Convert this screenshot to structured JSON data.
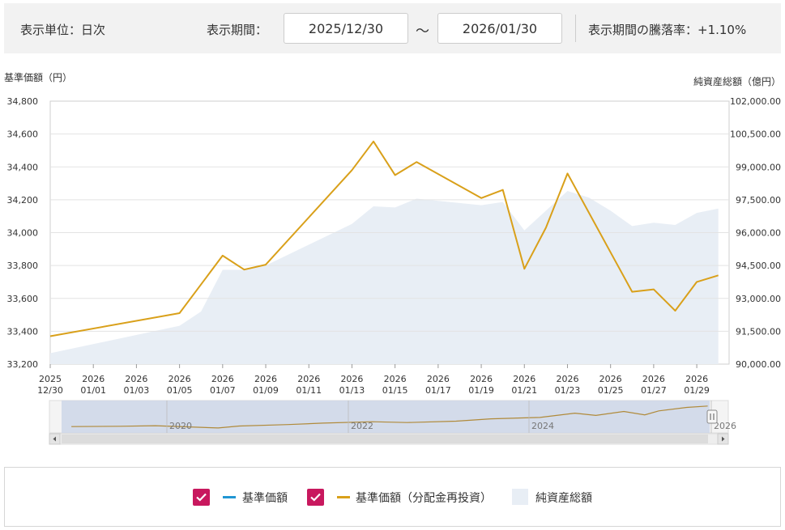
{
  "header": {
    "unit_label": "表示単位：日次",
    "period_label": "表示期間：",
    "start_date": "2025/12/30",
    "tilde": "～",
    "end_date": "2026/01/30",
    "change_label": "表示期間の騰落率：+1.10%"
  },
  "colors": {
    "nav_line": "#2196d3",
    "reinvest_line": "#d9a01a",
    "aum_area": "#e8eef5",
    "check": "#c8185e"
  },
  "chart_data": {
    "type": "line",
    "left_axis_label": "基準価額（円）",
    "right_axis_label": "純資産総額（億円）",
    "ylim_left": [
      33200,
      34800
    ],
    "ylim_right": [
      90000,
      102000
    ],
    "yticks_left": [
      "34,800",
      "34,600",
      "34,400",
      "34,200",
      "34,000",
      "33,800",
      "33,600",
      "33,400",
      "33,200"
    ],
    "yticks_right": [
      "102,000.00",
      "100,500.00",
      "99,000.00",
      "97,500.00",
      "96,000.00",
      "94,500.00",
      "93,000.00",
      "91,500.00",
      "90,000.00"
    ],
    "x_ticks": [
      {
        "date": "2025-12-30",
        "year": "2025",
        "md": "12/30"
      },
      {
        "date": "2026-01-01",
        "year": "2026",
        "md": "01/01"
      },
      {
        "date": "2026-01-03",
        "year": "2026",
        "md": "01/03"
      },
      {
        "date": "2026-01-05",
        "year": "2026",
        "md": "01/05"
      },
      {
        "date": "2026-01-07",
        "year": "2026",
        "md": "01/07"
      },
      {
        "date": "2026-01-09",
        "year": "2026",
        "md": "01/09"
      },
      {
        "date": "2026-01-11",
        "year": "2026",
        "md": "01/11"
      },
      {
        "date": "2026-01-13",
        "year": "2026",
        "md": "01/13"
      },
      {
        "date": "2026-01-15",
        "year": "2026",
        "md": "01/15"
      },
      {
        "date": "2026-01-17",
        "year": "2026",
        "md": "01/17"
      },
      {
        "date": "2026-01-19",
        "year": "2026",
        "md": "01/19"
      },
      {
        "date": "2026-01-21",
        "year": "2026",
        "md": "01/21"
      },
      {
        "date": "2026-01-23",
        "year": "2026",
        "md": "01/23"
      },
      {
        "date": "2026-01-25",
        "year": "2026",
        "md": "01/25"
      },
      {
        "date": "2026-01-27",
        "year": "2026",
        "md": "01/27"
      },
      {
        "date": "2026-01-29",
        "year": "2026",
        "md": "01/29"
      }
    ],
    "series": [
      {
        "name": "基準価額（分配金再投資）",
        "type": "line",
        "points": [
          [
            "2025-12-30",
            33370
          ],
          [
            "2026-01-05",
            33510
          ],
          [
            "2026-01-07",
            33860
          ],
          [
            "2026-01-08",
            33775
          ],
          [
            "2026-01-09",
            33805
          ],
          [
            "2026-01-13",
            34380
          ],
          [
            "2026-01-14",
            34555
          ],
          [
            "2026-01-15",
            34350
          ],
          [
            "2026-01-16",
            34430
          ],
          [
            "2026-01-19",
            34210
          ],
          [
            "2026-01-20",
            34260
          ],
          [
            "2026-01-21",
            33780
          ],
          [
            "2026-01-22",
            34030
          ],
          [
            "2026-01-23",
            34360
          ],
          [
            "2026-01-26",
            33640
          ],
          [
            "2026-01-27",
            33655
          ],
          [
            "2026-01-28",
            33525
          ],
          [
            "2026-01-29",
            33700
          ],
          [
            "2026-01-30",
            33740
          ]
        ]
      },
      {
        "name": "純資産総額",
        "type": "area",
        "points": [
          [
            "2025-12-30",
            90500
          ],
          [
            "2026-01-05",
            91750
          ],
          [
            "2026-01-06",
            92400
          ],
          [
            "2026-01-07",
            94300
          ],
          [
            "2026-01-08",
            94300
          ],
          [
            "2026-01-09",
            94500
          ],
          [
            "2026-01-13",
            96400
          ],
          [
            "2026-01-14",
            97200
          ],
          [
            "2026-01-15",
            97150
          ],
          [
            "2026-01-16",
            97550
          ],
          [
            "2026-01-19",
            97250
          ],
          [
            "2026-01-20",
            97400
          ],
          [
            "2026-01-21",
            96100
          ],
          [
            "2026-01-22",
            97000
          ],
          [
            "2026-01-23",
            97900
          ],
          [
            "2026-01-24",
            97600
          ],
          [
            "2026-01-25",
            97000
          ],
          [
            "2026-01-26",
            96300
          ],
          [
            "2026-01-27",
            96450
          ],
          [
            "2026-01-28",
            96350
          ],
          [
            "2026-01-29",
            96900
          ],
          [
            "2026-01-30",
            97100
          ]
        ]
      }
    ],
    "navigator": {
      "year_labels": [
        "2020",
        "2022",
        "2024",
        "2026"
      ],
      "history": [
        [
          "2018-06",
          33000
        ],
        [
          "2019-01",
          34000
        ],
        [
          "2019-06",
          36000
        ],
        [
          "2020-03",
          28000
        ],
        [
          "2020-06",
          35000
        ],
        [
          "2021-01",
          40000
        ],
        [
          "2021-06",
          45000
        ],
        [
          "2022-01",
          50000
        ],
        [
          "2022-06",
          47000
        ],
        [
          "2023-01",
          52000
        ],
        [
          "2023-06",
          60000
        ],
        [
          "2024-01",
          65000
        ],
        [
          "2024-06",
          80000
        ],
        [
          "2024-09",
          72000
        ],
        [
          "2025-01",
          86000
        ],
        [
          "2025-04",
          74000
        ],
        [
          "2025-06",
          88000
        ],
        [
          "2025-10",
          100000
        ],
        [
          "2026-01",
          105000
        ]
      ]
    }
  },
  "legend": {
    "item1": "基準価額",
    "item2": "基準価額（分配金再投資）",
    "item3": "純資産総額"
  }
}
